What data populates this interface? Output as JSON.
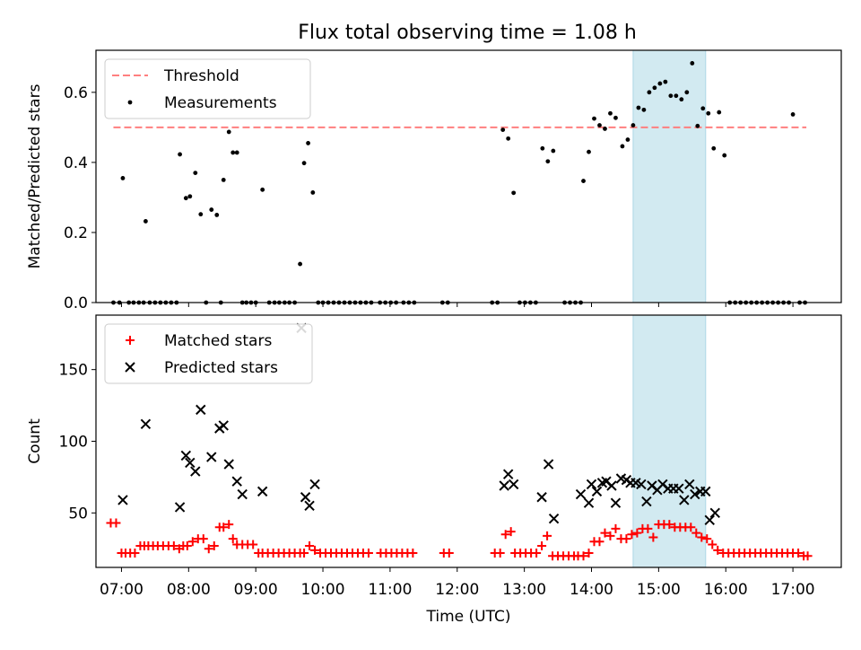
{
  "title": "Flux total observing time = 1.08 h",
  "colors": {
    "threshold": "#ff7f7f",
    "measurement": "#000000",
    "matched": "#ff0000",
    "predicted": "#000000",
    "window": "#add8e6"
  },
  "chart_data": [
    {
      "type": "scatter",
      "ylabel": "Matched/Predicted stars",
      "xlim": [
        6.62,
        17.72
      ],
      "ylim": [
        0,
        0.72
      ],
      "yticks": [
        0.0,
        0.2,
        0.4,
        0.6
      ],
      "ytick_labels": [
        "0.0",
        "0.2",
        "0.4",
        "0.6"
      ],
      "xticks": [
        7,
        8,
        9,
        10,
        11,
        12,
        13,
        14,
        15,
        16,
        17
      ],
      "highlight_window": [
        14.62,
        15.7
      ],
      "threshold": {
        "name": "Threshold",
        "value": 0.5,
        "x": [
          6.88,
          17.2
        ]
      },
      "legend": {
        "placement": "upper left",
        "entries": [
          "Threshold",
          "Measurements"
        ]
      },
      "series": [
        {
          "name": "Measurements",
          "x": [
            6.88,
            6.97,
            7.02,
            7.11,
            7.18,
            7.26,
            7.33,
            7.36,
            7.42,
            7.5,
            7.58,
            7.66,
            7.74,
            7.82,
            7.87,
            7.96,
            8.02,
            8.1,
            8.18,
            8.26,
            8.34,
            8.42,
            8.48,
            8.52,
            8.6,
            8.66,
            8.72,
            8.8,
            8.86,
            8.93,
            9.0,
            9.1,
            9.2,
            9.28,
            9.35,
            9.43,
            9.5,
            9.58,
            9.66,
            9.72,
            9.78,
            9.85,
            9.93,
            10.0,
            10.08,
            10.16,
            10.24,
            10.32,
            10.4,
            10.48,
            10.56,
            10.64,
            10.72,
            10.85,
            10.93,
            11.01,
            11.09,
            11.2,
            11.28,
            11.36,
            11.78,
            11.86,
            12.52,
            12.6,
            12.68,
            12.76,
            12.84,
            12.93,
            13.01,
            13.09,
            13.17,
            13.27,
            13.35,
            13.43,
            13.6,
            13.68,
            13.76,
            13.84,
            13.88,
            13.96,
            14.04,
            14.12,
            14.2,
            14.28,
            14.36,
            14.46,
            14.54,
            14.62,
            14.7,
            14.78,
            14.86,
            14.94,
            15.02,
            15.1,
            15.18,
            15.26,
            15.34,
            15.42,
            15.5,
            15.58,
            15.66,
            15.74,
            15.82,
            15.9,
            15.98,
            16.06,
            16.14,
            16.22,
            16.3,
            16.38,
            16.46,
            16.54,
            16.62,
            16.7,
            16.78,
            16.86,
            16.94,
            17.0,
            17.1,
            17.18
          ],
          "values": [
            0.0,
            0.0,
            0.355,
            0.0,
            0.0,
            0.0,
            0.0,
            0.232,
            0.0,
            0.0,
            0.0,
            0.0,
            0.0,
            0.0,
            0.423,
            0.298,
            0.303,
            0.37,
            0.252,
            0.0,
            0.265,
            0.25,
            0.0,
            0.35,
            0.487,
            0.428,
            0.428,
            0.0,
            0.0,
            0.0,
            0.0,
            0.322,
            0.0,
            0.0,
            0.0,
            0.0,
            0.0,
            0.0,
            0.11,
            0.398,
            0.455,
            0.314,
            0.0,
            0.0,
            0.0,
            0.0,
            0.0,
            0.0,
            0.0,
            0.0,
            0.0,
            0.0,
            0.0,
            0.0,
            0.0,
            0.0,
            0.0,
            0.0,
            0.0,
            0.0,
            0.0,
            0.0,
            0.0,
            0.0,
            0.493,
            0.468,
            0.313,
            0.0,
            0.0,
            0.0,
            0.0,
            0.44,
            0.403,
            0.433,
            0.0,
            0.0,
            0.0,
            0.0,
            0.347,
            0.43,
            0.525,
            0.506,
            0.496,
            0.54,
            0.527,
            0.446,
            0.465,
            0.506,
            0.556,
            0.55,
            0.6,
            0.613,
            0.625,
            0.63,
            0.59,
            0.59,
            0.58,
            0.6,
            0.683,
            0.504,
            0.554,
            0.54,
            0.44,
            0.543,
            0.42,
            0.0,
            0.0,
            0.0,
            0.0,
            0.0,
            0.0,
            0.0,
            0.0,
            0.0,
            0.0,
            0.0,
            0.0,
            0.537,
            0.0,
            0.0
          ]
        }
      ]
    },
    {
      "type": "scatter",
      "xlabel": "Time (UTC)",
      "ylabel": "Count",
      "xlim": [
        6.62,
        17.72
      ],
      "ylim": [
        12,
        188
      ],
      "yticks": [
        50,
        100,
        150
      ],
      "ytick_labels": [
        "50",
        "100",
        "150"
      ],
      "xticks": [
        7,
        8,
        9,
        10,
        11,
        12,
        13,
        14,
        15,
        16,
        17
      ],
      "xtick_labels": [
        "07:00",
        "08:00",
        "09:00",
        "10:00",
        "11:00",
        "12:00",
        "13:00",
        "14:00",
        "15:00",
        "16:00",
        "17:00"
      ],
      "highlight_window": [
        14.62,
        15.7
      ],
      "legend": {
        "placement": "upper left",
        "entries": [
          "Matched stars",
          "Predicted stars"
        ]
      },
      "series": [
        {
          "name": "Matched stars",
          "marker": "plus",
          "x": [
            6.84,
            6.92,
            7.0,
            7.06,
            7.13,
            7.2,
            7.28,
            7.34,
            7.4,
            7.47,
            7.54,
            7.62,
            7.7,
            7.78,
            7.86,
            7.92,
            7.98,
            8.06,
            8.14,
            8.22,
            8.3,
            8.38,
            8.46,
            8.52,
            8.6,
            8.66,
            8.72,
            8.8,
            8.88,
            8.96,
            9.04,
            9.1,
            9.18,
            9.26,
            9.34,
            9.42,
            9.5,
            9.58,
            9.66,
            9.72,
            9.8,
            9.88,
            9.96,
            10.04,
            10.12,
            10.2,
            10.28,
            10.36,
            10.44,
            10.52,
            10.6,
            10.68,
            10.86,
            10.94,
            11.02,
            11.1,
            11.18,
            11.26,
            11.34,
            11.8,
            11.88,
            12.56,
            12.64,
            12.72,
            12.8,
            12.86,
            12.94,
            13.02,
            13.1,
            13.18,
            13.26,
            13.34,
            13.42,
            13.5,
            13.58,
            13.66,
            13.74,
            13.8,
            13.88,
            13.96,
            14.04,
            14.12,
            14.2,
            14.28,
            14.36,
            14.44,
            14.52,
            14.6,
            14.68,
            14.76,
            14.84,
            14.92,
            15.0,
            15.08,
            15.16,
            15.24,
            15.32,
            15.4,
            15.48,
            15.56,
            15.64,
            15.72,
            15.8,
            15.88,
            15.96,
            16.04,
            16.12,
            16.2,
            16.28,
            16.36,
            16.44,
            16.52,
            16.6,
            16.68,
            16.76,
            16.84,
            16.92,
            17.0,
            17.08,
            17.16,
            17.22
          ],
          "values": [
            43,
            43,
            22,
            22,
            22,
            22,
            27,
            27,
            27,
            27,
            27,
            27,
            27,
            27,
            25,
            27,
            27,
            30,
            32,
            32,
            25,
            27,
            40,
            40,
            42,
            32,
            28,
            28,
            28,
            28,
            22,
            22,
            22,
            22,
            22,
            22,
            22,
            22,
            22,
            22,
            27,
            24,
            22,
            22,
            22,
            22,
            22,
            22,
            22,
            22,
            22,
            22,
            22,
            22,
            22,
            22,
            22,
            22,
            22,
            22,
            22,
            22,
            22,
            35,
            37,
            22,
            22,
            22,
            22,
            22,
            27,
            34,
            20,
            20,
            20,
            20,
            20,
            20,
            20,
            22,
            30,
            30,
            36,
            34,
            39,
            32,
            32,
            35,
            36,
            39,
            39,
            33,
            42,
            42,
            42,
            40,
            40,
            40,
            40,
            36,
            33,
            32,
            28,
            24,
            22,
            22,
            22,
            22,
            22,
            22,
            22,
            22,
            22,
            22,
            22,
            22,
            22,
            22,
            22,
            20,
            20
          ]
        },
        {
          "name": "Predicted stars",
          "marker": "x",
          "x": [
            7.02,
            7.36,
            7.87,
            7.96,
            8.02,
            8.1,
            8.18,
            8.34,
            8.46,
            8.52,
            8.6,
            8.72,
            8.8,
            9.1,
            9.68,
            9.74,
            9.8,
            9.88,
            12.7,
            12.76,
            12.84,
            13.26,
            13.36,
            13.44,
            13.84,
            13.96,
            14.0,
            14.08,
            14.16,
            14.22,
            14.3,
            14.36,
            14.44,
            14.52,
            14.58,
            14.66,
            14.74,
            14.82,
            14.9,
            14.98,
            15.06,
            15.14,
            15.22,
            15.3,
            15.38,
            15.46,
            15.54,
            15.62,
            15.7,
            15.76,
            15.84
          ],
          "values": [
            59,
            112,
            54,
            90,
            85,
            79,
            122,
            89,
            109,
            111,
            84,
            72,
            63,
            65,
            179,
            61,
            55,
            70,
            69,
            77,
            70,
            61,
            84,
            46,
            63,
            57,
            70,
            65,
            71,
            72,
            69,
            57,
            74,
            73,
            71,
            71,
            70,
            58,
            69,
            66,
            70,
            67,
            67,
            67,
            59,
            70,
            63,
            65,
            65,
            45,
            50
          ]
        }
      ]
    }
  ]
}
